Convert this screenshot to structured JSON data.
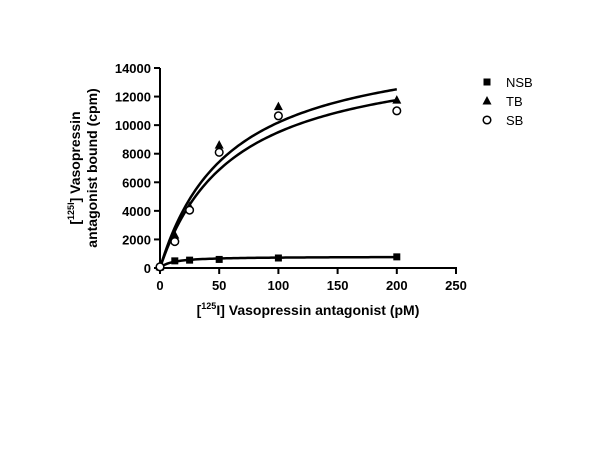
{
  "chart_data": {
    "type": "scatter",
    "xlabel_pre": "[",
    "xlabel_sup": "125",
    "xlabel_post": "I] Vasopressin antagonist (pM)",
    "ylabel_line1_pre": "[",
    "ylabel_line1_sup": "125I",
    "ylabel_line1_post": "] Vasopressin",
    "ylabel_line2": "antagonist bound (cpm)",
    "xlim": [
      0,
      250
    ],
    "ylim": [
      0,
      14000
    ],
    "xticks": [
      0,
      50,
      100,
      150,
      200,
      250
    ],
    "xtick_labels": [
      "0",
      "50",
      "100",
      "150",
      "200",
      "250"
    ],
    "yticks": [
      0,
      2000,
      4000,
      6000,
      8000,
      10000,
      12000,
      14000
    ],
    "ytick_labels": [
      "0",
      "2000",
      "4000",
      "6000",
      "8000",
      "10000",
      "12000",
      "14000"
    ],
    "grid": false,
    "legend_position": "right",
    "series": [
      {
        "name": "NSB",
        "marker": "square",
        "x": [
          0,
          12.5,
          25,
          50,
          100,
          200
        ],
        "y": [
          50,
          500,
          550,
          600,
          700,
          780
        ],
        "fit": {
          "bmax": 800,
          "kd": 10
        }
      },
      {
        "name": "TB",
        "marker": "triangle",
        "x": [
          0,
          12.5,
          25,
          50,
          100,
          200
        ],
        "y": [
          100,
          2300,
          4300,
          8600,
          11300,
          11750
        ],
        "fit": {
          "bmax": 16200,
          "kd": 59
        }
      },
      {
        "name": "SB",
        "marker": "circle-open",
        "x": [
          0,
          12.5,
          25,
          50,
          100,
          200
        ],
        "y": [
          80,
          1850,
          4050,
          8100,
          10650,
          11000
        ],
        "fit": {
          "bmax": 15400,
          "kd": 62
        }
      }
    ]
  }
}
